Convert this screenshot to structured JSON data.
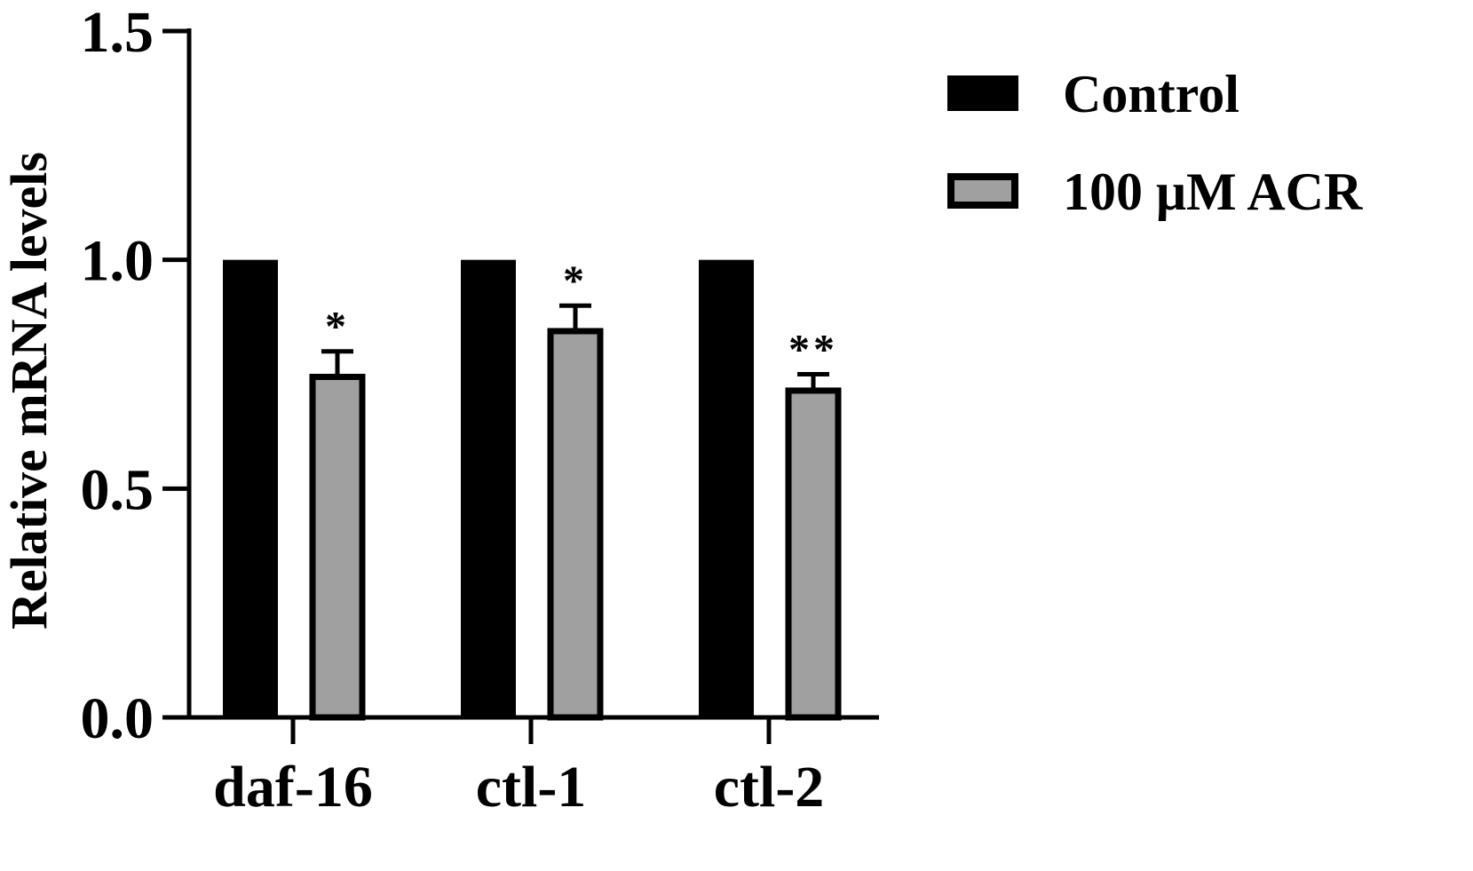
{
  "chart_data": {
    "type": "bar",
    "categories": [
      "daf-16",
      "ctl-1",
      "ctl-2"
    ],
    "series": [
      {
        "name": "Control",
        "values": [
          1.0,
          1.0,
          1.0
        ],
        "errors": [
          0,
          0,
          0
        ],
        "color": "#000000"
      },
      {
        "name": "100 μM ACR",
        "values": [
          0.75,
          0.85,
          0.72
        ],
        "errors": [
          0.05,
          0.05,
          0.03
        ],
        "color": "#a0a0a0"
      }
    ],
    "significance": [
      "*",
      "*",
      "**"
    ],
    "xlabel": "",
    "ylabel": "Relative mRNA levels",
    "ylim": [
      0,
      1.5
    ],
    "yticks": [
      0.0,
      0.5,
      1.0,
      1.5
    ],
    "ytick_labels": [
      "0.0",
      "0.5",
      "1.0",
      "1.5"
    ],
    "grid": false,
    "legend_position": "top-right"
  }
}
